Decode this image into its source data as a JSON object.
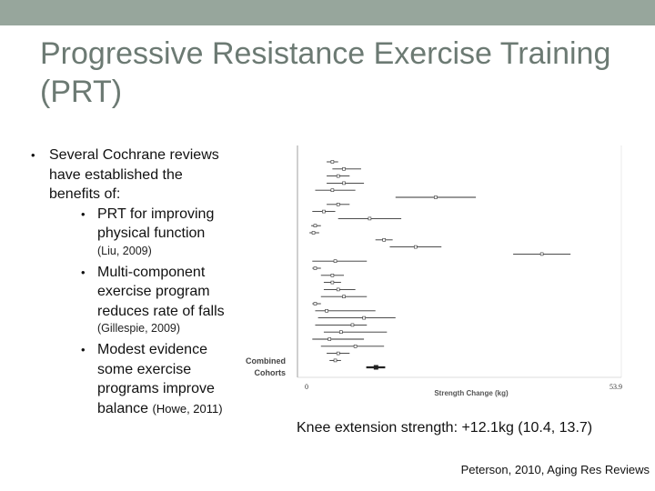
{
  "title": "Progressive Resistance Exercise Training (PRT)",
  "bullets": {
    "main": "Several Cochrane reviews have established the benefits of:",
    "items": [
      {
        "text": "PRT for improving physical function",
        "cite": "(Liu, 2009)"
      },
      {
        "text": "Multi-component exercise program reduces rate of falls",
        "cite": "(Gillespie, 2009)"
      },
      {
        "text": "Modest evidence some exercise programs improve balance",
        "cite": "(Howe, 2011)"
      }
    ]
  },
  "figure": {
    "combined_label": "Combined Cohorts",
    "x_label": "Strength Change (kg)",
    "x_min_label": "0",
    "x_max_label": "53.9"
  },
  "chart_data": {
    "type": "forest",
    "xlabel": "Strength Change (kg)",
    "xlim": [
      0,
      53.9
    ],
    "studies": [
      {
        "est": 4.5,
        "lo": 3.5,
        "hi": 5.5
      },
      {
        "est": 6.5,
        "lo": 4.5,
        "hi": 9.5
      },
      {
        "est": 5.5,
        "lo": 3.5,
        "hi": 7.5
      },
      {
        "est": 6.5,
        "lo": 3.5,
        "hi": 10.0
      },
      {
        "est": 4.5,
        "lo": 1.5,
        "hi": 8.5
      },
      {
        "est": 22.5,
        "lo": 15.5,
        "hi": 29.5
      },
      {
        "est": 5.5,
        "lo": 3.5,
        "hi": 7.5
      },
      {
        "est": 3.0,
        "lo": 1.0,
        "hi": 5.0
      },
      {
        "est": 11.0,
        "lo": 5.5,
        "hi": 16.5
      },
      {
        "est": 1.5,
        "lo": 0.8,
        "hi": 2.5
      },
      {
        "est": 1.2,
        "lo": 0.5,
        "hi": 2.2
      },
      {
        "est": 13.5,
        "lo": 12.0,
        "hi": 15.0
      },
      {
        "est": 19.0,
        "lo": 14.5,
        "hi": 23.5
      },
      {
        "est": 41.0,
        "lo": 36.0,
        "hi": 46.0
      },
      {
        "est": 5.0,
        "lo": 1.0,
        "hi": 10.5
      },
      {
        "est": 1.5,
        "lo": 1.0,
        "hi": 2.5
      },
      {
        "est": 4.5,
        "lo": 2.5,
        "hi": 6.5
      },
      {
        "est": 4.5,
        "lo": 3.0,
        "hi": 6.0
      },
      {
        "est": 5.5,
        "lo": 3.0,
        "hi": 8.5
      },
      {
        "est": 6.5,
        "lo": 2.5,
        "hi": 10.5
      },
      {
        "est": 1.5,
        "lo": 1.0,
        "hi": 2.5
      },
      {
        "est": 3.5,
        "lo": 1.5,
        "hi": 12.0
      },
      {
        "est": 10.0,
        "lo": 2.0,
        "hi": 15.5
      },
      {
        "est": 8.0,
        "lo": 1.5,
        "hi": 10.5
      },
      {
        "est": 6.0,
        "lo": 3.0,
        "hi": 14.0
      },
      {
        "est": 4.0,
        "lo": 1.0,
        "hi": 10.0
      },
      {
        "est": 8.5,
        "lo": 2.5,
        "hi": 13.5
      },
      {
        "est": 5.5,
        "lo": 3.5,
        "hi": 7.5
      },
      {
        "est": 5.0,
        "lo": 4.0,
        "hi": 6.0
      }
    ],
    "pooled": {
      "est": 12.1,
      "lo": 10.4,
      "hi": 13.7
    }
  },
  "summary": "Knee extension strength: +12.1kg (10.4, 13.7)",
  "reference": "Peterson, 2010, Aging Res Reviews"
}
